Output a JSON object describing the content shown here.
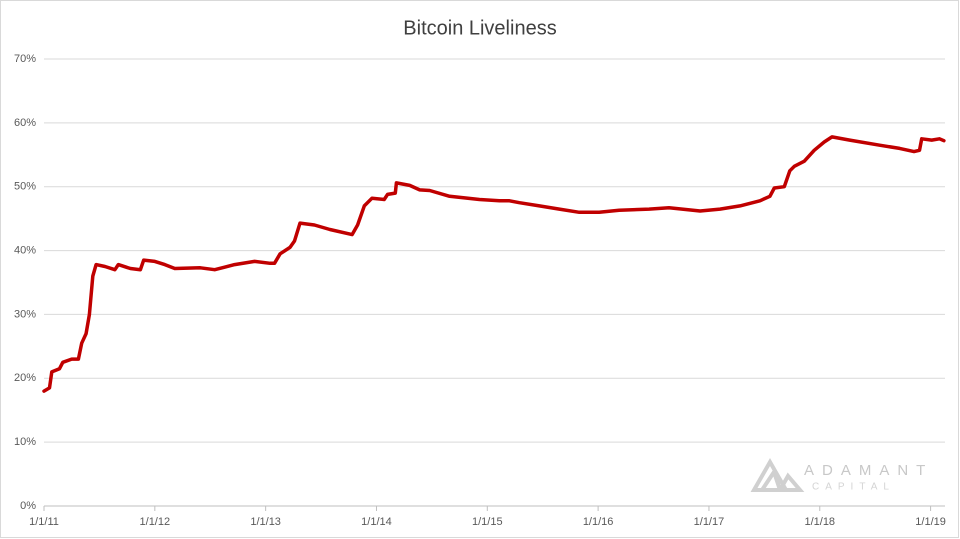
{
  "chart_data": {
    "type": "line",
    "title": "Bitcoin Liveliness",
    "x": [
      2011.0,
      2011.05,
      2011.07,
      2011.14,
      2011.17,
      2011.25,
      2011.31,
      2011.34,
      2011.38,
      2011.41,
      2011.44,
      2011.47,
      2011.55,
      2011.64,
      2011.67,
      2011.78,
      2011.87,
      2011.9,
      2012.0,
      2012.09,
      2012.18,
      2012.41,
      2012.54,
      2012.63,
      2012.72,
      2012.9,
      2013.04,
      2013.08,
      2013.13,
      2013.22,
      2013.26,
      2013.31,
      2013.44,
      2013.58,
      2013.78,
      2013.83,
      2013.89,
      2013.96,
      2014.07,
      2014.1,
      2014.17,
      2014.18,
      2014.3,
      2014.39,
      2014.48,
      2014.66,
      2014.93,
      2015.11,
      2015.2,
      2015.29,
      2015.47,
      2015.65,
      2015.83,
      2016.01,
      2016.19,
      2016.46,
      2016.64,
      2016.92,
      2017.1,
      2017.28,
      2017.46,
      2017.55,
      2017.59,
      2017.68,
      2017.73,
      2017.77,
      2017.86,
      2017.95,
      2018.04,
      2018.11,
      2018.27,
      2018.54,
      2018.72,
      2018.85,
      2018.9,
      2018.92,
      2019.01,
      2019.08,
      2019.12
    ],
    "series": [
      {
        "name": "Liveliness",
        "color": "#c00000",
        "values": [
          18,
          18.5,
          21,
          21.5,
          22.5,
          23,
          23,
          25.5,
          27,
          30,
          36,
          37.8,
          37.5,
          37,
          37.8,
          37.2,
          37,
          38.5,
          38.3,
          37.8,
          37.2,
          37.3,
          37,
          37.4,
          37.8,
          38.3,
          38,
          38,
          39.5,
          40.5,
          41.5,
          44.3,
          44,
          43.3,
          42.5,
          44,
          47,
          48.2,
          48,
          48.8,
          49,
          50.6,
          50.2,
          49.5,
          49.4,
          48.5,
          48,
          47.8,
          47.8,
          47.5,
          47,
          46.5,
          46,
          46,
          46.3,
          46.5,
          46.7,
          46.2,
          46.5,
          47,
          47.8,
          48.5,
          49.8,
          50,
          52.5,
          53.2,
          54,
          55.7,
          57,
          57.8,
          57.3,
          56.5,
          56,
          55.5,
          55.7,
          57.5,
          57.3,
          57.5,
          57.2
        ]
      }
    ],
    "xlim": [
      2011,
      2019.13
    ],
    "xticks": [
      {
        "value": 2011,
        "label": "1/1/11"
      },
      {
        "value": 2012,
        "label": "1/1/12"
      },
      {
        "value": 2013,
        "label": "1/1/13"
      },
      {
        "value": 2014,
        "label": "1/1/14"
      },
      {
        "value": 2015,
        "label": "1/1/15"
      },
      {
        "value": 2016,
        "label": "1/1/16"
      },
      {
        "value": 2017,
        "label": "1/1/17"
      },
      {
        "value": 2018,
        "label": "1/1/18"
      },
      {
        "value": 2019,
        "label": "1/1/19"
      }
    ],
    "ylim": [
      0,
      70
    ],
    "yticks": [
      {
        "value": 0,
        "label": "0%"
      },
      {
        "value": 10,
        "label": "10%"
      },
      {
        "value": 20,
        "label": "20%"
      },
      {
        "value": 30,
        "label": "30%"
      },
      {
        "value": 40,
        "label": "40%"
      },
      {
        "value": 50,
        "label": "50%"
      },
      {
        "value": 60,
        "label": "60%"
      },
      {
        "value": 70,
        "label": "70%"
      }
    ],
    "grid": true,
    "watermark": {
      "name": "ADAMANT",
      "subtitle": "CAPITAL"
    }
  }
}
